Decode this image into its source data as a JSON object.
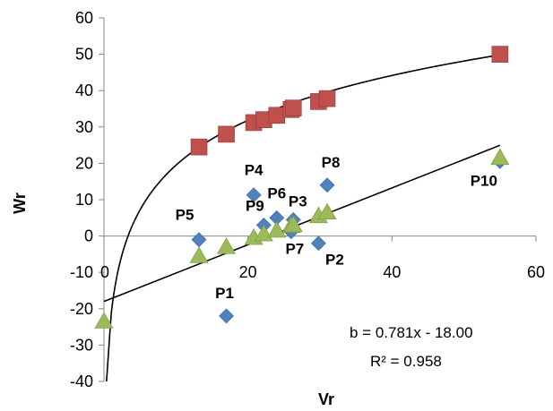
{
  "chart_data": {
    "type": "scatter",
    "title": "",
    "xlabel": "Vr",
    "ylabel": "Wr",
    "xlim": [
      0,
      60
    ],
    "ylim": [
      -40,
      60
    ],
    "x_ticks": [
      "0",
      "20",
      "40",
      "60"
    ],
    "y_ticks": [
      "60",
      "50",
      "40",
      "30",
      "20",
      "10",
      "0",
      "-10",
      "-20",
      "-30",
      "-40"
    ],
    "grid": false,
    "legend": "none",
    "colors": {
      "diamond": "#4f81bd",
      "square": "#c0504d",
      "triangle": "#9bbb59",
      "trend": "#000000"
    },
    "series": [
      {
        "marker": "diamond",
        "points": [
          {
            "x": 17.0,
            "y": -22.0,
            "label": "P1"
          },
          {
            "x": 29.8,
            "y": -2.0,
            "label": "P2"
          },
          {
            "x": 26.3,
            "y": 4.5,
            "label": "P3"
          },
          {
            "x": 20.8,
            "y": 11.3,
            "label": "P4"
          },
          {
            "x": 13.2,
            "y": -1.0,
            "label": "P5"
          },
          {
            "x": 24.0,
            "y": 5.0,
            "label": "P6"
          },
          {
            "x": 26.0,
            "y": 1.2,
            "label": "P7"
          },
          {
            "x": 31.0,
            "y": 14.0,
            "label": "P8"
          },
          {
            "x": 22.2,
            "y": 3.0,
            "label": "P9"
          },
          {
            "x": 55.0,
            "y": 20.5,
            "label": "P10"
          }
        ]
      },
      {
        "marker": "square",
        "points": [
          {
            "x": 13.2,
            "y": 24.5
          },
          {
            "x": 17.0,
            "y": 28.0
          },
          {
            "x": 20.8,
            "y": 31.2
          },
          {
            "x": 22.2,
            "y": 32.0
          },
          {
            "x": 24.0,
            "y": 33.2
          },
          {
            "x": 26.0,
            "y": 34.8
          },
          {
            "x": 26.3,
            "y": 35.2
          },
          {
            "x": 29.8,
            "y": 37.0
          },
          {
            "x": 31.0,
            "y": 37.8
          },
          {
            "x": 55.0,
            "y": 50.0
          }
        ]
      },
      {
        "marker": "triangle",
        "points": [
          {
            "x": 0.0,
            "y": -23.5
          },
          {
            "x": 13.2,
            "y": -5.5
          },
          {
            "x": 17.0,
            "y": -3.0
          },
          {
            "x": 20.8,
            "y": -0.5
          },
          {
            "x": 22.2,
            "y": 0.5
          },
          {
            "x": 24.0,
            "y": 1.5
          },
          {
            "x": 26.0,
            "y": 2.8
          },
          {
            "x": 26.3,
            "y": 3.0
          },
          {
            "x": 29.8,
            "y": 5.5
          },
          {
            "x": 31.0,
            "y": 6.5
          },
          {
            "x": 55.0,
            "y": 21.5
          }
        ]
      }
    ],
    "trendlines": [
      {
        "type": "linear",
        "slope": 0.781,
        "intercept": -18.0,
        "x_range": [
          0,
          55
        ]
      },
      {
        "type": "logarithmic",
        "a": 17.8,
        "b": -21.5,
        "x_range": [
          1.0,
          55
        ]
      }
    ],
    "annotations": {
      "equation": "b = 0.781x - 18.00",
      "r_squared": "R² = 0.958"
    }
  }
}
